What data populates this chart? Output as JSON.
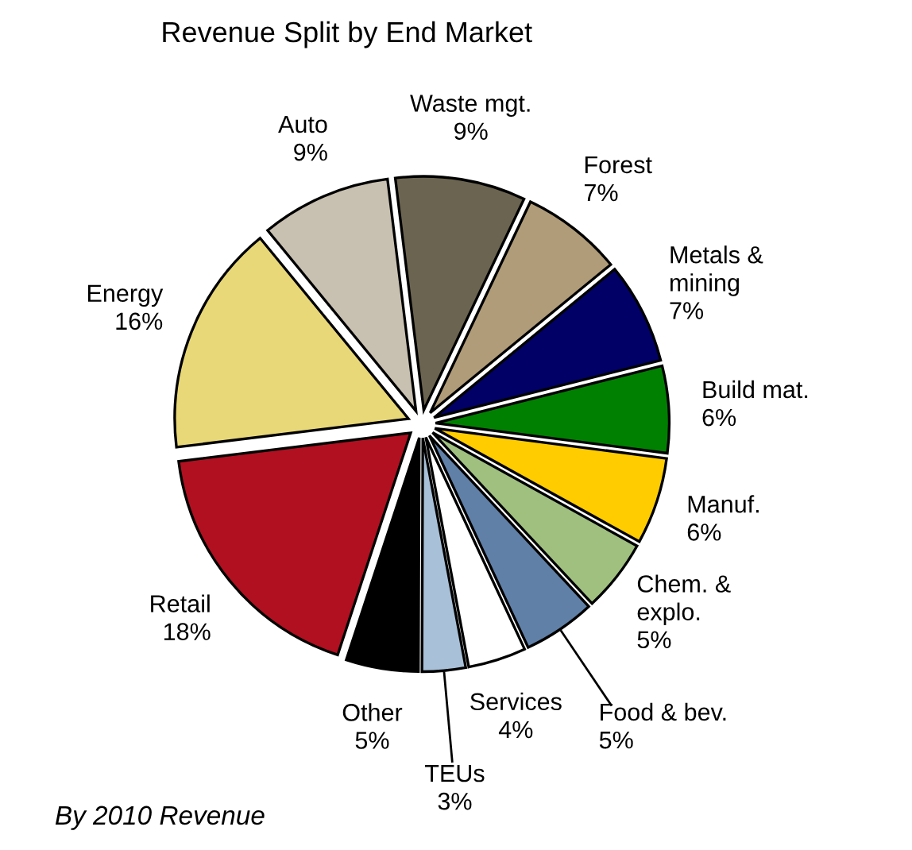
{
  "chart_data": {
    "type": "pie",
    "title": "Revenue Split by End Market",
    "categories": [
      "Waste mgt.",
      "Forest",
      "Metals &\nmining",
      "Build mat.",
      "Manuf.",
      "Chem. &\nexplo.",
      "Food & bev.",
      "Services",
      "TEUs",
      "Other",
      "Retail",
      "Energy",
      "Auto"
    ],
    "values": [
      9,
      7,
      7,
      6,
      6,
      5,
      5,
      4,
      3,
      5,
      18,
      16,
      9
    ],
    "colors": [
      "#6b6450",
      "#b09c78",
      "#000066",
      "#008000",
      "#ffcc00",
      "#a0c080",
      "#6080a8",
      "#ffffff",
      "#a8c0d8",
      "#000000",
      "#b01020",
      "#e8d878",
      "#c8c0b0"
    ],
    "value_labels": [
      "9%",
      "7%",
      "7%",
      "6%",
      "6%",
      "5%",
      "5%",
      "4%",
      "3%",
      "5%",
      "18%",
      "16%",
      "9%"
    ],
    "annotations": [
      "By 2010 Revenue"
    ]
  }
}
